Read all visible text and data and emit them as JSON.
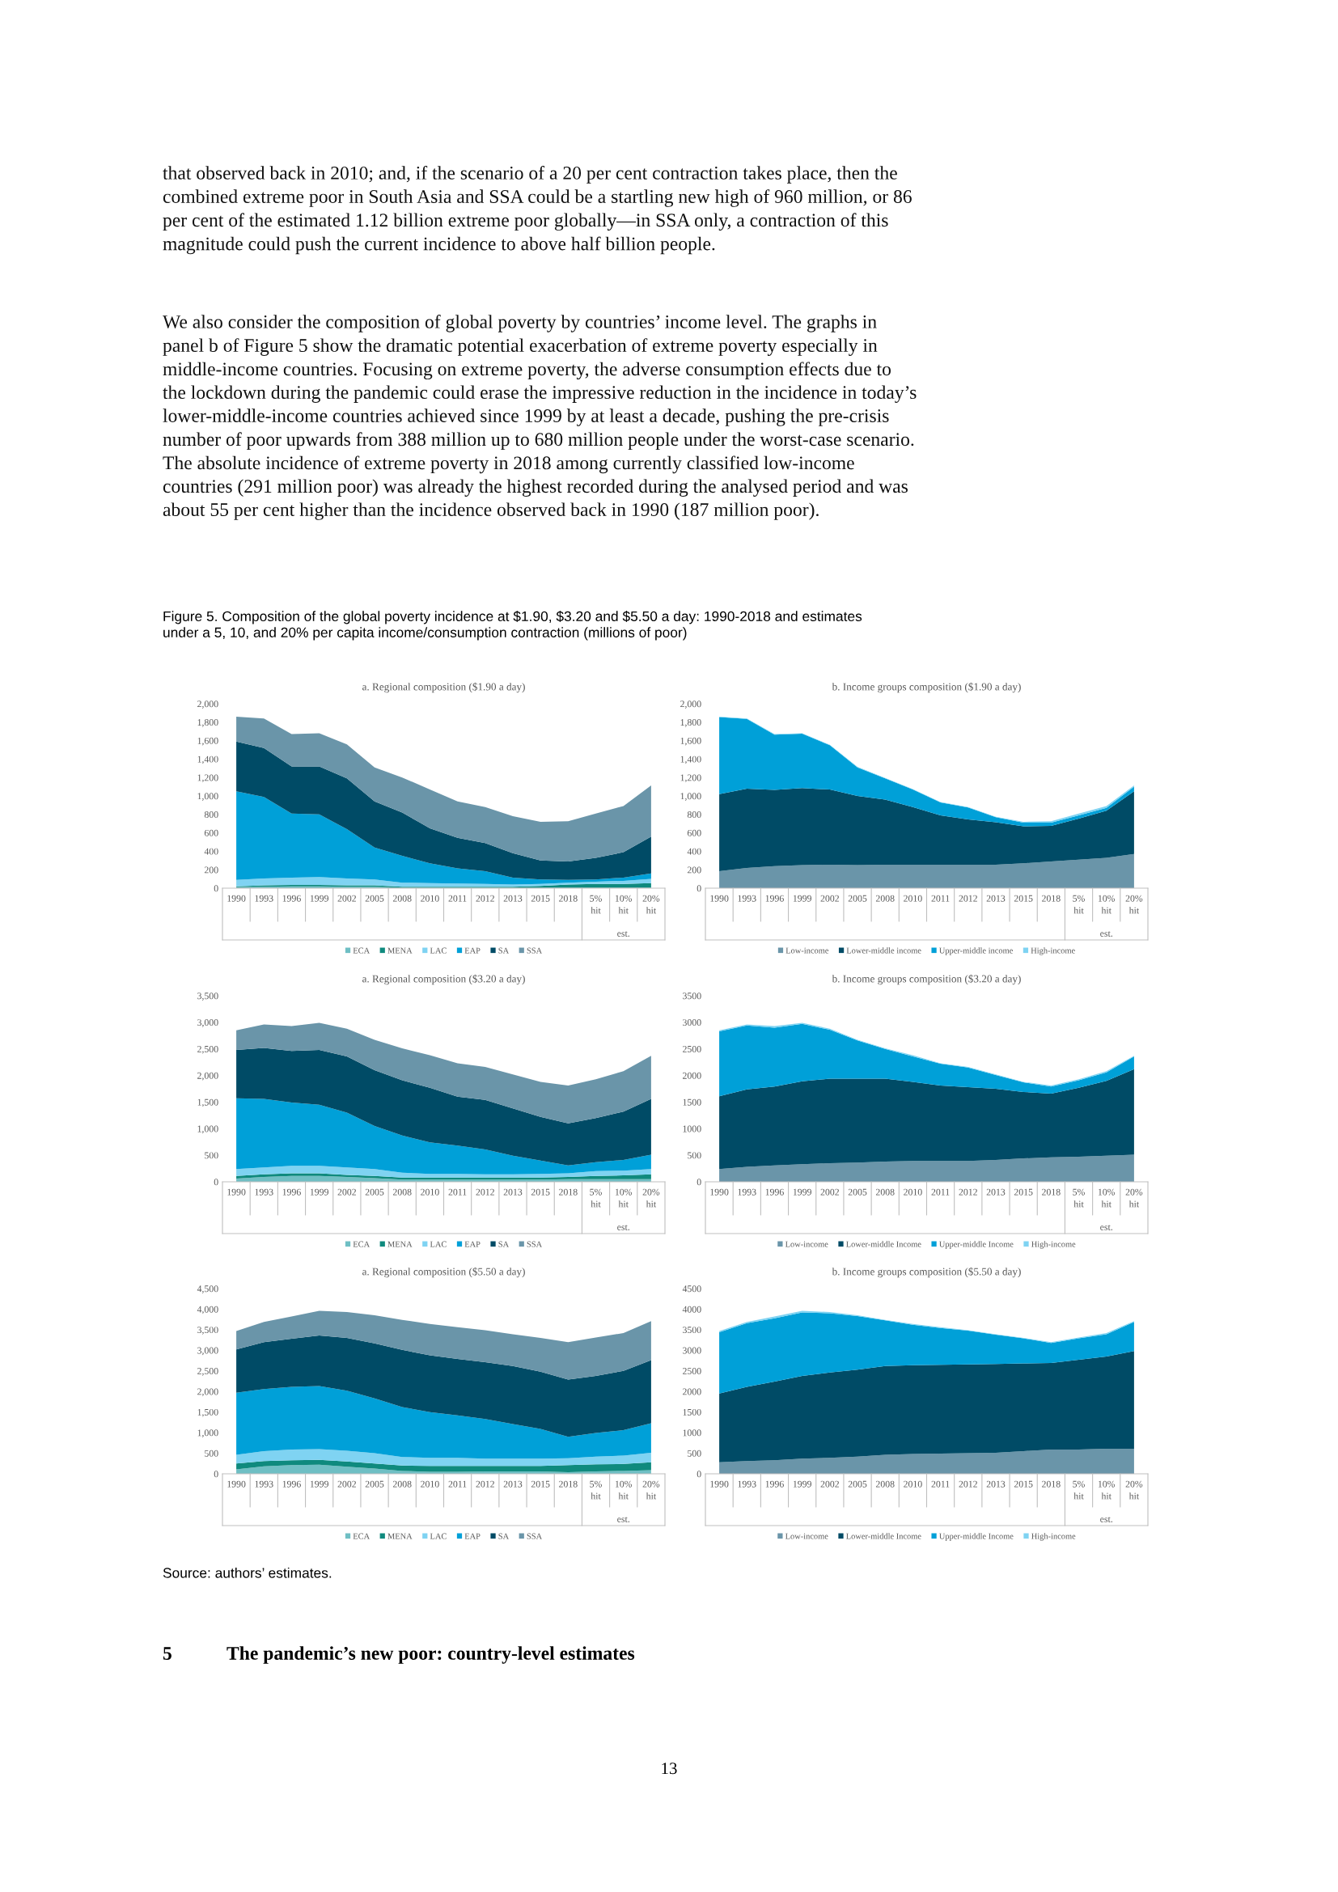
{
  "chart_data": [
    {
      "type": "other",
      "title": "Figure 5. Composition of the global poverty incidence at $1.90, $3.20 and $5.50 a day: 1990-2018 and estimates\nunder a 5, 10, and 20% per capita income/consumption contraction (millions of poor)",
      "annotations": [
        "that observed back in 2010; and, if the scenario of a 20 per cent contraction takes place, then the\ncombined extreme poor in South Asia and SSA could be a startling new high of 960 million, or 86\nper cent of the estimated 1.12 billion extreme poor globally—in SSA only, a contraction of this\nmagnitude could push the current incidence to above half billion people.",
        "We also consider the composition of global poverty by countries’ income level. The graphs in\npanel b of Figure 5 show the dramatic potential exacerbation of extreme poverty especially in\nmiddle-income countries. Focusing on extreme poverty, the adverse consumption effects due to\nthe lockdown during the pandemic could erase the impressive reduction in the incidence in today’s\nlower-middle-income countries achieved since 1999 by at least a decade, pushing the pre-crisis\nnumber of poor upwards from 388 million up to 680 million people under the worst-case scenario.\nThe absolute incidence of extreme poverty in 2018 among currently classified low-income\ncountries (291 million poor) was already the highest recorded during the analysed period and was\nabout 55 per cent higher than the incidence observed back in 1990 (187 million poor)."
      ]
    },
    {
      "type": "area",
      "stacked": true,
      "legend": "bottom",
      "title": "a. Regional composition ($1.90 a day)",
      "categories": [
        "1990",
        "1993",
        "1996",
        "1999",
        "2002",
        "2005",
        "2008",
        "2010",
        "2011",
        "2012",
        "2013",
        "2015",
        "2018",
        "5% hit",
        "10% hit",
        "20% hit"
      ],
      "annotations": [
        "est."
      ],
      "ylim": [
        0,
        2000
      ],
      "yticks": [
        0,
        200,
        400,
        600,
        800,
        {
          "value": 1000,
          "label": "1,000"
        },
        {
          "value": 1200,
          "label": "1,200"
        },
        {
          "value": 1400,
          "label": "1,400"
        },
        {
          "value": 1600,
          "label": "1,600"
        },
        {
          "value": 1800,
          "label": "1,800"
        },
        {
          "value": 2000,
          "label": "2,000"
        }
      ],
      "series": [
        {
          "name": "ECA",
          "color": "#6fbfc4",
          "values": [
            10,
            15,
            20,
            20,
            15,
            15,
            5,
            5,
            5,
            5,
            5,
            5,
            5,
            5,
            5,
            5
          ]
        },
        {
          "name": "MENA",
          "color": "#0f8a7e",
          "values": [
            10,
            15,
            15,
            15,
            15,
            15,
            10,
            10,
            10,
            10,
            10,
            20,
            35,
            40,
            40,
            50
          ]
        },
        {
          "name": "LAC",
          "color": "#7fd3f2",
          "values": [
            70,
            75,
            80,
            85,
            75,
            65,
            45,
            40,
            35,
            30,
            25,
            20,
            20,
            25,
            35,
            45
          ]
        },
        {
          "name": "EAP",
          "color": "#00a0d8",
          "values": [
            960,
            885,
            695,
            680,
            535,
            345,
            290,
            215,
            165,
            140,
            75,
            50,
            30,
            25,
            35,
            60
          ]
        },
        {
          "name": "SA",
          "color": "#004b66",
          "values": [
            540,
            530,
            510,
            520,
            550,
            500,
            470,
            380,
            330,
            305,
            265,
            205,
            200,
            235,
            275,
            400
          ]
        },
        {
          "name": "SSA",
          "color": "#6a95a9",
          "values": [
            270,
            320,
            350,
            360,
            370,
            370,
            380,
            420,
            395,
            390,
            400,
            420,
            435,
            480,
            500,
            555
          ]
        }
      ]
    },
    {
      "type": "area",
      "stacked": true,
      "legend": "bottom",
      "title": "b. Income groups composition ($1.90 a day)",
      "categories": [
        "1990",
        "1993",
        "1996",
        "1999",
        "2002",
        "2005",
        "2008",
        "2010",
        "2011",
        "2012",
        "2013",
        "2015",
        "2018",
        "5% hit",
        "10% hit",
        "20% hit"
      ],
      "annotations": [
        "est."
      ],
      "ylim": [
        0,
        2000
      ],
      "yticks": [
        0,
        200,
        400,
        600,
        800,
        {
          "value": 1000,
          "label": "1,000"
        },
        {
          "value": 1200,
          "label": "1,200"
        },
        {
          "value": 1400,
          "label": "1,400"
        },
        {
          "value": 1600,
          "label": "1,600"
        },
        {
          "value": 1800,
          "label": "1,800"
        },
        {
          "value": 2000,
          "label": "2,000"
        }
      ],
      "series": [
        {
          "name": "Low-income",
          "color": "#6a95a9",
          "values": [
            185,
            220,
            240,
            250,
            255,
            250,
            255,
            255,
            255,
            255,
            255,
            270,
            290,
            310,
            330,
            370
          ]
        },
        {
          "name": "Lower-middle income",
          "color": "#004b66",
          "values": [
            835,
            860,
            825,
            835,
            815,
            750,
            705,
            625,
            535,
            490,
            460,
            400,
            385,
            445,
            510,
            680
          ]
        },
        {
          "name": "Upper-middle income",
          "color": "#00a0d8",
          "values": [
            835,
            755,
            600,
            590,
            480,
            310,
            230,
            190,
            140,
            130,
            55,
            40,
            35,
            35,
            30,
            50
          ]
        },
        {
          "name": "High-income",
          "color": "#7fd3f2",
          "values": [
            5,
            5,
            5,
            5,
            5,
            5,
            5,
            5,
            5,
            5,
            5,
            10,
            15,
            20,
            20,
            15
          ]
        }
      ]
    },
    {
      "type": "area",
      "stacked": true,
      "legend": "bottom",
      "title": "a. Regional composition ($3.20 a day)",
      "categories": [
        "1990",
        "1993",
        "1996",
        "1999",
        "2002",
        "2005",
        "2008",
        "2010",
        "2011",
        "2012",
        "2013",
        "2015",
        "2018",
        "5% hit",
        "10% hit",
        "20% hit"
      ],
      "annotations": [
        "est."
      ],
      "ylim": [
        0,
        3500
      ],
      "yticks": [
        0,
        500,
        {
          "value": 1000,
          "label": "1,000"
        },
        {
          "value": 1500,
          "label": "1,500"
        },
        {
          "value": 2000,
          "label": "2,000"
        },
        {
          "value": 2500,
          "label": "2,500"
        },
        {
          "value": 3000,
          "label": "3,000"
        },
        {
          "value": 3500,
          "label": "3,500"
        }
      ],
      "series": [
        {
          "name": "ECA",
          "color": "#6fbfc4",
          "values": [
            60,
            90,
            110,
            110,
            90,
            70,
            40,
            40,
            40,
            40,
            40,
            40,
            50,
            50,
            50,
            50
          ]
        },
        {
          "name": "MENA",
          "color": "#0f8a7e",
          "values": [
            50,
            50,
            50,
            50,
            40,
            40,
            40,
            40,
            40,
            40,
            40,
            40,
            40,
            60,
            70,
            90
          ]
        },
        {
          "name": "LAC",
          "color": "#7fd3f2",
          "values": [
            130,
            130,
            140,
            140,
            140,
            130,
            90,
            70,
            70,
            60,
            60,
            70,
            70,
            90,
            90,
            100
          ]
        },
        {
          "name": "EAP",
          "color": "#00a0d8",
          "values": [
            1330,
            1290,
            1190,
            1150,
            1030,
            810,
            700,
            590,
            530,
            470,
            350,
            250,
            150,
            170,
            200,
            270
          ]
        },
        {
          "name": "SA",
          "color": "#004b66",
          "values": [
            910,
            960,
            970,
            1030,
            1060,
            1050,
            1040,
            1030,
            920,
            930,
            890,
            820,
            790,
            830,
            910,
            1050
          ]
        },
        {
          "name": "SSA",
          "color": "#6a95a9",
          "values": [
            370,
            440,
            470,
            510,
            520,
            570,
            600,
            610,
            630,
            620,
            640,
            660,
            710,
            730,
            760,
            810
          ]
        }
      ]
    },
    {
      "type": "area",
      "stacked": true,
      "legend": "bottom",
      "title": "b. Income groups composition ($3.20 a day)",
      "categories": [
        "1990",
        "1993",
        "1996",
        "1999",
        "2002",
        "2005",
        "2008",
        "2010",
        "2011",
        "2012",
        "2013",
        "2015",
        "2018",
        "5% hit",
        "10% hit",
        "20% hit"
      ],
      "annotations": [
        "est."
      ],
      "ylim": [
        0,
        3500
      ],
      "yticks": [
        0,
        500,
        1000,
        1500,
        2000,
        2500,
        3000,
        3500
      ],
      "series": [
        {
          "name": "Low-income",
          "color": "#6a95a9",
          "values": [
            240,
            280,
            310,
            330,
            350,
            360,
            380,
            390,
            390,
            390,
            410,
            440,
            460,
            470,
            490,
            510
          ]
        },
        {
          "name": "Lower-middle Income",
          "color": "#004b66",
          "values": [
            1370,
            1460,
            1480,
            1560,
            1590,
            1580,
            1560,
            1490,
            1420,
            1390,
            1340,
            1250,
            1200,
            1300,
            1410,
            1610
          ]
        },
        {
          "name": "Upper-middle Income",
          "color": "#00a0d8",
          "values": [
            1220,
            1200,
            1110,
            1080,
            920,
            720,
            560,
            480,
            410,
            370,
            260,
            180,
            130,
            140,
            160,
            240
          ]
        },
        {
          "name": "High-income",
          "color": "#7fd3f2",
          "values": [
            20,
            20,
            30,
            20,
            20,
            10,
            10,
            20,
            10,
            10,
            10,
            10,
            20,
            20,
            20,
            10
          ]
        }
      ]
    },
    {
      "type": "area",
      "stacked": true,
      "legend": "bottom",
      "title": "a. Regional composition ($5.50 a day)",
      "categories": [
        "1990",
        "1993",
        "1996",
        "1999",
        "2002",
        "2005",
        "2008",
        "2010",
        "2011",
        "2012",
        "2013",
        "2015",
        "2018",
        "5% hit",
        "10% hit",
        "20% hit"
      ],
      "annotations": [
        "est."
      ],
      "ylim": [
        0,
        4500
      ],
      "yticks": [
        0,
        500,
        {
          "value": 1000,
          "label": "1,000"
        },
        {
          "value": 1500,
          "label": "1,500"
        },
        {
          "value": 2000,
          "label": "2,000"
        },
        {
          "value": 2500,
          "label": "2,500"
        },
        {
          "value": 3000,
          "label": "3,000"
        },
        {
          "value": 3500,
          "label": "3,500"
        },
        {
          "value": 4000,
          "label": "4,000"
        },
        {
          "value": 4500,
          "label": "4,500"
        }
      ],
      "series": [
        {
          "name": "ECA",
          "color": "#6fbfc4",
          "values": [
            110,
            180,
            210,
            220,
            170,
            130,
            70,
            50,
            50,
            60,
            60,
            60,
            40,
            60,
            70,
            90
          ]
        },
        {
          "name": "MENA",
          "color": "#0f8a7e",
          "values": [
            140,
            130,
            120,
            120,
            130,
            120,
            130,
            140,
            140,
            130,
            130,
            130,
            170,
            170,
            170,
            190
          ]
        },
        {
          "name": "LAC",
          "color": "#7fd3f2",
          "values": [
            210,
            240,
            260,
            260,
            260,
            250,
            210,
            200,
            200,
            180,
            180,
            180,
            170,
            190,
            200,
            230
          ]
        },
        {
          "name": "EAP",
          "color": "#00a0d8",
          "values": [
            1510,
            1510,
            1520,
            1530,
            1460,
            1330,
            1210,
            1110,
            1030,
            960,
            840,
            720,
            520,
            570,
            620,
            720
          ]
        },
        {
          "name": "SA",
          "color": "#004b66",
          "values": [
            1050,
            1140,
            1170,
            1230,
            1280,
            1340,
            1390,
            1380,
            1370,
            1380,
            1410,
            1390,
            1390,
            1390,
            1440,
            1530
          ]
        },
        {
          "name": "SSA",
          "color": "#6a95a9",
          "values": [
            450,
            490,
            540,
            600,
            630,
            680,
            730,
            760,
            770,
            780,
            770,
            820,
            910,
            930,
            920,
            950
          ]
        }
      ]
    },
    {
      "type": "area",
      "stacked": true,
      "legend": "bottom",
      "title": "b. Income groups composition ($5.50 a day)",
      "categories": [
        "1990",
        "1993",
        "1996",
        "1999",
        "2002",
        "2005",
        "2008",
        "2010",
        "2011",
        "2012",
        "2013",
        "2015",
        "2018",
        "5% hit",
        "10% hit",
        "20% hit"
      ],
      "annotations": [
        "est."
      ],
      "ylim": [
        0,
        4500
      ],
      "yticks": [
        0,
        500,
        1000,
        1500,
        2000,
        2500,
        3000,
        3500,
        4000,
        4500
      ],
      "series": [
        {
          "name": "Low-income",
          "color": "#6a95a9",
          "values": [
            280,
            310,
            330,
            370,
            390,
            420,
            460,
            480,
            490,
            500,
            510,
            550,
            590,
            590,
            610,
            610
          ]
        },
        {
          "name": "Lower-middle Income",
          "color": "#004b66",
          "values": [
            1670,
            1800,
            1910,
            2010,
            2070,
            2110,
            2160,
            2160,
            2160,
            2160,
            2160,
            2130,
            2100,
            2180,
            2240,
            2370
          ]
        },
        {
          "name": "Upper-middle Income",
          "color": "#00a0d8",
          "values": [
            1490,
            1550,
            1540,
            1540,
            1440,
            1300,
            1110,
            980,
            890,
            820,
            710,
            610,
            490,
            520,
            540,
            710
          ]
        },
        {
          "name": "High-income",
          "color": "#7fd3f2",
          "values": [
            30,
            30,
            40,
            40,
            30,
            20,
            10,
            20,
            20,
            10,
            10,
            10,
            20,
            20,
            30,
            20
          ]
        }
      ]
    },
    {
      "type": "other",
      "annotations": [
        "Source: authors’ estimates.",
        "5",
        "The pandemic’s new poor: country-level estimates",
        "13"
      ]
    }
  ]
}
